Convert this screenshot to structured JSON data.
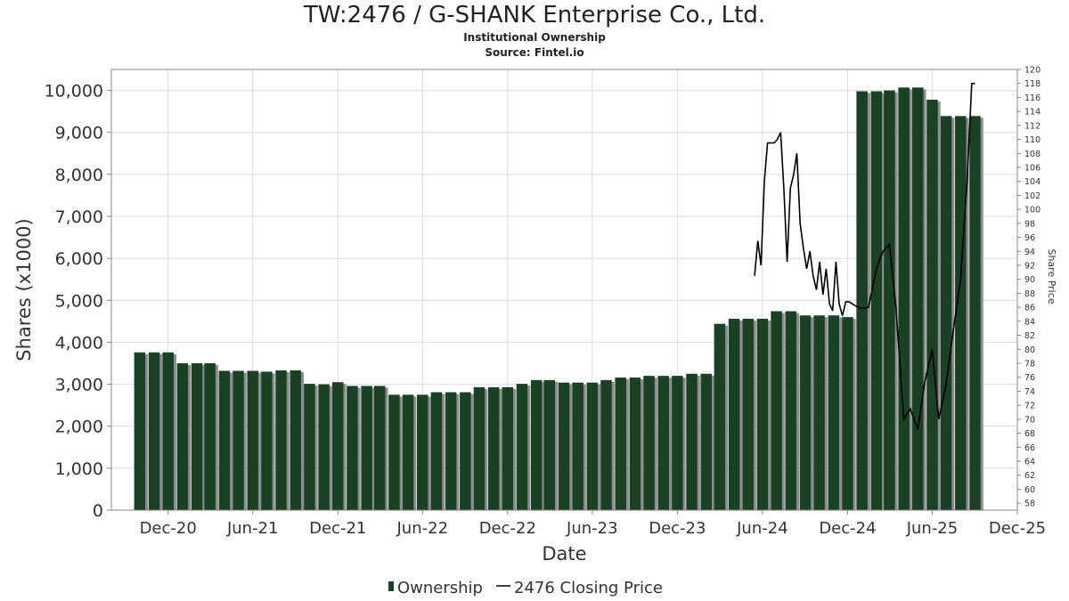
{
  "title": "TW:2476 / G-SHANK Enterprise Co., Ltd.",
  "subtitle": "Institutional Ownership",
  "source": "Source: Fintel.io",
  "chart_data": {
    "type": "bar",
    "xlabel": "Date",
    "ylabel": "Shares (x1000)",
    "y2label": "Share Price",
    "ylim": [
      0,
      10500
    ],
    "y2lim": [
      57,
      120
    ],
    "yticks": [
      0,
      1000,
      2000,
      3000,
      4000,
      5000,
      6000,
      7000,
      8000,
      9000,
      10000
    ],
    "yticklabels": [
      "0",
      "1,000",
      "2,000",
      "3,000",
      "4,000",
      "5,000",
      "6,000",
      "7,000",
      "8,000",
      "9,000",
      "10,000"
    ],
    "y2ticks": [
      58,
      60,
      62,
      64,
      66,
      68,
      70,
      72,
      74,
      76,
      78,
      80,
      82,
      84,
      86,
      88,
      90,
      92,
      94,
      96,
      98,
      100,
      102,
      104,
      106,
      108,
      110,
      112,
      114,
      116,
      118,
      120
    ],
    "xlim": [
      "2020-08-01",
      "2025-12-01"
    ],
    "xticks": [
      "2020-12-01",
      "2021-06-01",
      "2021-12-01",
      "2022-06-01",
      "2022-12-01",
      "2023-06-01",
      "2023-12-01",
      "2024-06-01",
      "2024-12-01",
      "2025-06-01",
      "2025-12-01"
    ],
    "xticklabels": [
      "Dec-20",
      "Jun-21",
      "Dec-21",
      "Jun-22",
      "Dec-22",
      "Jun-23",
      "Dec-23",
      "Jun-24",
      "Dec-24",
      "Jun-25",
      "Dec-25"
    ],
    "grid": true,
    "legend_position": "bottom",
    "colors": {
      "bar": "#1a4125",
      "bar_shadow": "#8c8c8c",
      "line": "#000000",
      "grid": "#dcdcdc"
    },
    "series": [
      {
        "name": "Ownership",
        "type": "bar",
        "x": [
          "2020-10-01",
          "2020-11-01",
          "2020-12-01",
          "2021-01-01",
          "2021-02-01",
          "2021-03-01",
          "2021-04-01",
          "2021-05-01",
          "2021-06-01",
          "2021-07-01",
          "2021-08-01",
          "2021-09-01",
          "2021-10-01",
          "2021-11-01",
          "2021-12-01",
          "2022-01-01",
          "2022-02-01",
          "2022-03-01",
          "2022-04-01",
          "2022-05-01",
          "2022-06-01",
          "2022-07-01",
          "2022-08-01",
          "2022-09-01",
          "2022-10-01",
          "2022-11-01",
          "2022-12-01",
          "2023-01-01",
          "2023-02-01",
          "2023-03-01",
          "2023-04-01",
          "2023-05-01",
          "2023-06-01",
          "2023-07-01",
          "2023-08-01",
          "2023-09-01",
          "2023-10-01",
          "2023-11-01",
          "2023-12-01",
          "2024-01-01",
          "2024-02-01",
          "2024-03-01",
          "2024-04-01",
          "2024-05-01",
          "2024-06-01",
          "2024-07-01",
          "2024-08-01",
          "2024-09-01",
          "2024-10-01",
          "2024-11-01",
          "2024-12-01",
          "2025-01-01",
          "2025-02-01",
          "2025-03-01",
          "2025-04-01",
          "2025-05-01",
          "2025-06-01",
          "2025-07-01",
          "2025-08-01",
          "2025-09-01"
        ],
        "values": [
          3760,
          3760,
          3760,
          3500,
          3500,
          3500,
          3320,
          3320,
          3320,
          3300,
          3330,
          3330,
          3010,
          3000,
          3050,
          2960,
          2960,
          2960,
          2750,
          2750,
          2750,
          2810,
          2810,
          2810,
          2930,
          2930,
          2930,
          3010,
          3100,
          3100,
          3040,
          3040,
          3040,
          3100,
          3160,
          3160,
          3200,
          3200,
          3200,
          3250,
          3250,
          4440,
          4560,
          4560,
          4560,
          4740,
          4740,
          4640,
          4640,
          4640,
          4600,
          9980,
          9980,
          10000,
          10070,
          10070,
          9780,
          9390,
          9390,
          9390
        ]
      },
      {
        "name": "2476 Closing Price",
        "type": "line",
        "x": [
          "2024-05-15",
          "2024-05-22",
          "2024-05-29",
          "2024-06-05",
          "2024-06-12",
          "2024-06-19",
          "2024-06-26",
          "2024-07-03",
          "2024-07-10",
          "2024-07-17",
          "2024-07-24",
          "2024-07-31",
          "2024-08-07",
          "2024-08-14",
          "2024-08-21",
          "2024-08-28",
          "2024-09-04",
          "2024-09-11",
          "2024-09-18",
          "2024-09-25",
          "2024-10-02",
          "2024-10-09",
          "2024-10-16",
          "2024-10-23",
          "2024-10-30",
          "2024-11-06",
          "2024-11-13",
          "2024-11-20",
          "2024-11-27",
          "2024-12-04",
          "2024-12-11",
          "2024-12-18",
          "2025-01-01",
          "2025-01-15",
          "2025-02-01",
          "2025-02-15",
          "2025-03-01",
          "2025-03-15",
          "2025-04-01",
          "2025-04-15",
          "2025-05-01",
          "2025-05-15",
          "2025-06-01",
          "2025-06-15",
          "2025-07-01",
          "2025-07-15",
          "2025-08-01",
          "2025-08-15",
          "2025-08-25",
          "2025-09-01"
        ],
        "values": [
          90.5,
          95.5,
          92,
          104,
          109.5,
          109.5,
          109.5,
          110,
          111,
          103,
          92.5,
          103,
          105,
          108,
          98,
          94.5,
          91.5,
          94,
          90.5,
          88.5,
          92.5,
          87.8,
          91.5,
          86.5,
          85.5,
          92.5,
          86.5,
          84.8,
          86.8,
          86.8,
          86.5,
          86.2,
          85.8,
          86,
          91.5,
          94,
          95,
          86,
          70,
          71.5,
          68.5,
          75,
          80,
          70,
          75,
          82,
          90,
          104,
          118,
          118
        ]
      }
    ]
  }
}
